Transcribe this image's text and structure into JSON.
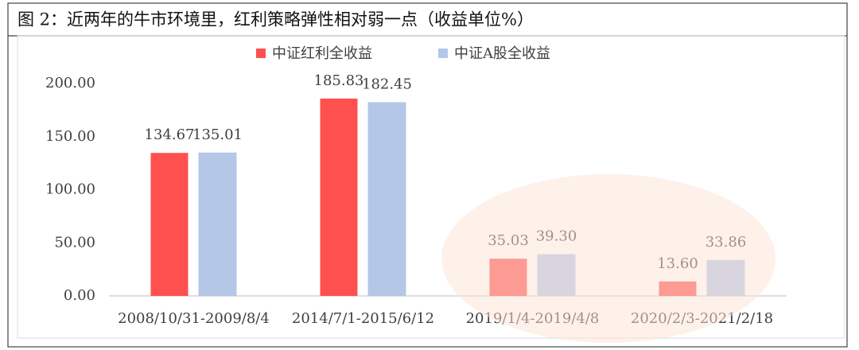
{
  "chart_data": {
    "type": "bar",
    "title": "图 2：近两年的牛市环境里，红利策略弹性相对弱一点（收益单位%）",
    "categories": [
      "2008/10/31-2009/8/4",
      "2014/7/1-2015/6/12",
      "2019/1/4-2019/4/8",
      "2020/2/3-2021/2/18"
    ],
    "series": [
      {
        "name": "中证红利全收益",
        "color": "#ff5050",
        "values": [
          134.67,
          185.83,
          35.03,
          13.6
        ],
        "value_labels": [
          "134.67",
          "185.83",
          "35.03",
          "13.60"
        ]
      },
      {
        "name": "中证A股全收益",
        "color": "#b4c7e7",
        "values": [
          135.01,
          182.45,
          39.3,
          33.86
        ],
        "value_labels": [
          "135.01",
          "182.45",
          "39.30",
          "33.86"
        ]
      }
    ],
    "ylim": [
      0,
      200
    ],
    "yticks": [
      {
        "value": 0,
        "label": "0.00"
      },
      {
        "value": 50,
        "label": "50.00"
      },
      {
        "value": 100,
        "label": "100.00"
      },
      {
        "value": 150,
        "label": "150.00"
      },
      {
        "value": 200,
        "label": "200.00"
      }
    ]
  }
}
